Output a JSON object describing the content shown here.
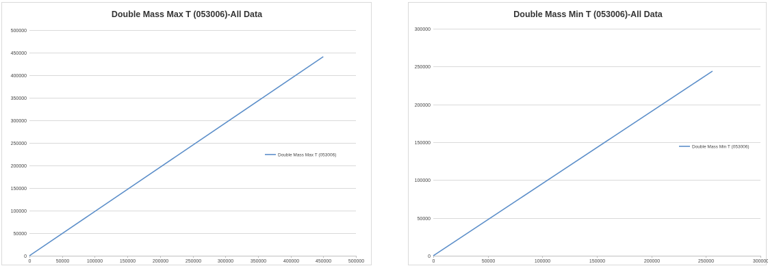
{
  "chart_data": [
    {
      "type": "line",
      "title": "Double Mass Max T (053006)-All Data",
      "xlabel": "",
      "ylabel": "",
      "xlim": [
        0,
        500000
      ],
      "ylim": [
        0,
        500000
      ],
      "xticks": [
        "0",
        "50000",
        "100000",
        "150000",
        "200000",
        "250000",
        "300000",
        "350000",
        "400000",
        "450000",
        "500000"
      ],
      "yticks": [
        "0",
        "50000",
        "100000",
        "150000",
        "200000",
        "250000",
        "300000",
        "350000",
        "400000",
        "450000",
        "500000"
      ],
      "grid": "horizontal",
      "legend_position": "right",
      "series": [
        {
          "name": "Double Mass Max T (053006)",
          "color": "#5b8ec9",
          "x": [
            0,
            450000
          ],
          "y": [
            0,
            441000
          ]
        }
      ]
    },
    {
      "type": "line",
      "title": "Double Mass Min T (053006)-All Data",
      "xlabel": "",
      "ylabel": "",
      "xlim": [
        0,
        300000
      ],
      "ylim": [
        0,
        300000
      ],
      "xticks": [
        "0",
        "50000",
        "100000",
        "150000",
        "200000",
        "250000",
        "300000"
      ],
      "yticks": [
        "0",
        "50000",
        "100000",
        "150000",
        "200000",
        "250000",
        "300000"
      ],
      "grid": "horizontal",
      "legend_position": "right",
      "series": [
        {
          "name": "Double Mass Min T (053006)",
          "color": "#5b8ec9",
          "x": [
            0,
            256000
          ],
          "y": [
            0,
            244000
          ]
        }
      ]
    }
  ]
}
